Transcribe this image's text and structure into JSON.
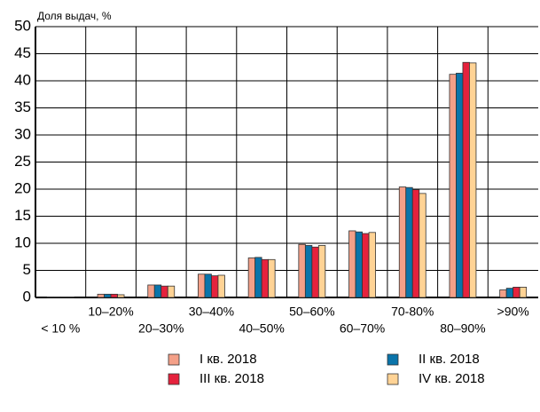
{
  "chart_data": {
    "type": "bar",
    "y_axis_label": "Доля выдач, %",
    "categories": [
      "< 10 %",
      "10–20%",
      "20–30%",
      "30–40%",
      "40–50%",
      "50–60%",
      "60–70%",
      "70-80%",
      "80–90%",
      ">90%"
    ],
    "series": [
      {
        "name": "I кв. 2018",
        "color": "#f4a088",
        "values": [
          0.1,
          0.6,
          2.3,
          4.3,
          7.3,
          9.8,
          12.3,
          20.4,
          41.2,
          1.4
        ]
      },
      {
        "name": "II кв. 2018",
        "color": "#0a74aa",
        "values": [
          0.1,
          0.6,
          2.3,
          4.3,
          7.4,
          9.6,
          12.1,
          20.3,
          41.4,
          1.7
        ]
      },
      {
        "name": "III кв. 2018",
        "color": "#e5223d",
        "values": [
          0.1,
          0.6,
          2.1,
          4.0,
          7.0,
          9.3,
          11.8,
          19.9,
          43.4,
          1.9
        ]
      },
      {
        "name": "IV кв. 2018",
        "color": "#ffd395",
        "values": [
          0.1,
          0.5,
          2.1,
          4.1,
          7.0,
          9.6,
          12.0,
          19.2,
          43.3,
          1.9
        ]
      }
    ],
    "ylim": [
      0,
      50
    ],
    "yticks": [
      0,
      5,
      10,
      15,
      20,
      25,
      30,
      35,
      40,
      45,
      50
    ],
    "grid": true
  }
}
